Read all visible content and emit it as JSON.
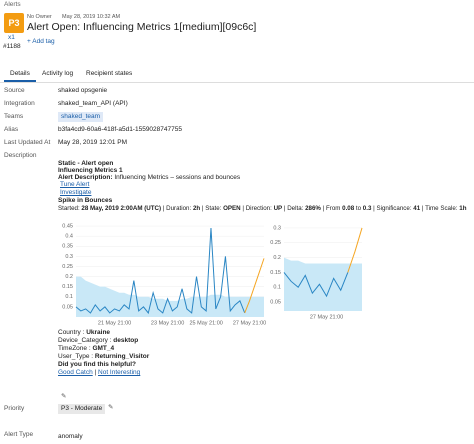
{
  "header": {
    "section": "Alerts",
    "priority": "P3",
    "count": "x1",
    "alert_id": "#1188",
    "owner": "No Owner",
    "created": "May 28, 2019 10:32 AM",
    "title": "Alert Open: Influencing Metrics 1[medium][09c6c]",
    "add_tag": "+ Add tag"
  },
  "tabs": [
    "Details",
    "Activity log",
    "Recipient states"
  ],
  "fields": {
    "source": {
      "label": "Source",
      "value": "shaked opsgenie"
    },
    "integration": {
      "label": "Integration",
      "value": "shaked_team_API (API)"
    },
    "teams": {
      "label": "Teams",
      "value": "shaked_team"
    },
    "alias": {
      "label": "Alias",
      "value": "b3fa4cd9-60a6-418f-a5d1-1559028747755"
    },
    "updated": {
      "label": "Last Updated At",
      "value": "May 28, 2019 12:01 PM"
    },
    "description": {
      "label": "Description"
    },
    "priority": {
      "label": "Priority",
      "value": "P3 - Moderate"
    },
    "alert_type": {
      "label": "Alert Type",
      "value": "anomaly"
    }
  },
  "description": {
    "line1": "Static - Alert open",
    "line2": "Influencing Metrics 1",
    "desc_label": "Alert Description:",
    "desc_value": "Influencing Metrics – sessions and bounces",
    "tune": "Tune Alert",
    "investigate": "Investigate",
    "spike": "Spike in Bounces",
    "started": [
      "Started: ",
      "28 May, 2019 2:00AM (UTC)",
      " | Duration: ",
      "2h",
      " | State: ",
      "OPEN",
      " | Direction: ",
      "UP",
      " | Delta: ",
      "286%",
      " | From ",
      "0.08",
      " to ",
      "0.3",
      " | Significance: ",
      "41",
      " | Time Scale: ",
      "1h"
    ],
    "dims": [
      [
        "Country :",
        "Ukraine"
      ],
      [
        "Device_Category :",
        "desktop"
      ],
      [
        "TimeZone :",
        "GMT_4"
      ],
      [
        "User_Type :",
        "Returning_Visitor"
      ]
    ],
    "helpful": "Did you find this helpful?",
    "good": "Good Catch",
    "separator": "|",
    "not_interesting": "Not Interesting"
  },
  "charts": [
    {
      "type": "line",
      "ylim": [
        0,
        0.47
      ],
      "yticks": [
        0.05,
        0.1,
        0.15,
        0.2,
        0.25,
        0.3,
        0.35,
        0.4,
        0.45
      ],
      "xlim": [
        0,
        39
      ],
      "xticks": [
        {
          "value": 8,
          "label": "21 May 21:00"
        },
        {
          "value": 19,
          "label": "23 May 21:00"
        },
        {
          "value": 27,
          "label": "25 May 21:00"
        },
        {
          "value": 36,
          "label": "27 May 21:00"
        }
      ],
      "band": {
        "color": "#c9e8f7",
        "values": [
          0.2,
          0.2,
          0.18,
          0.17,
          0.16,
          0.15,
          0.15,
          0.14,
          0.13,
          0.12,
          0.12,
          0.11,
          0.11,
          0.1,
          0.1,
          0.1,
          0.09,
          0.09,
          0.09,
          0.08,
          0.08,
          0.08,
          0.09,
          0.09,
          0.1,
          0.1,
          0.1,
          0.1,
          0.11,
          0.11,
          0.11,
          0.1,
          0.1,
          0.1,
          0.1,
          0.1,
          0.1,
          0.1,
          0.1,
          0.1
        ]
      },
      "series": [
        {
          "color": "#2a86c4",
          "values": [
            0.05,
            0.03,
            0.04,
            0.02,
            0.06,
            0.03,
            0.05,
            0.02,
            0.04,
            0.03,
            0.06,
            0.04,
            0.18,
            0.03,
            0.05,
            0.02,
            0.12,
            0.04,
            0.02,
            0.09,
            0.03,
            0.05,
            0.14,
            0.04,
            0.02,
            0.2,
            0.05,
            0.03,
            0.44,
            0.04,
            0.1,
            0.3,
            0.03,
            0.06,
            0.08,
            0.02,
            null,
            null,
            null,
            null
          ]
        },
        {
          "color": "#f5a623",
          "values": [
            null,
            null,
            null,
            null,
            null,
            null,
            null,
            null,
            null,
            null,
            null,
            null,
            null,
            null,
            null,
            null,
            null,
            null,
            null,
            null,
            null,
            null,
            null,
            null,
            null,
            null,
            null,
            null,
            null,
            null,
            null,
            null,
            null,
            null,
            null,
            0.02,
            0.08,
            0.15,
            0.22,
            0.29
          ]
        }
      ]
    },
    {
      "type": "line",
      "ylim": [
        0.02,
        0.32
      ],
      "yticks": [
        0.05,
        0.1,
        0.15,
        0.2,
        0.25,
        0.3
      ],
      "xlim": [
        0,
        11
      ],
      "xticks": [
        {
          "value": 6,
          "label": "27 May 21:00"
        }
      ],
      "band": {
        "color": "#c9e8f7",
        "values": [
          0.2,
          0.19,
          0.19,
          0.18,
          0.18,
          0.18,
          0.18,
          0.18,
          0.18,
          0.18,
          0.18,
          0.18
        ]
      },
      "series": [
        {
          "color": "#2a86c4",
          "values": [
            0.15,
            0.12,
            0.1,
            0.14,
            0.08,
            0.11,
            0.07,
            0.13,
            0.09,
            0.15,
            null,
            null
          ]
        },
        {
          "color": "#f5a623",
          "values": [
            null,
            null,
            null,
            null,
            null,
            null,
            null,
            null,
            null,
            0.15,
            0.22,
            0.3
          ]
        }
      ]
    }
  ]
}
